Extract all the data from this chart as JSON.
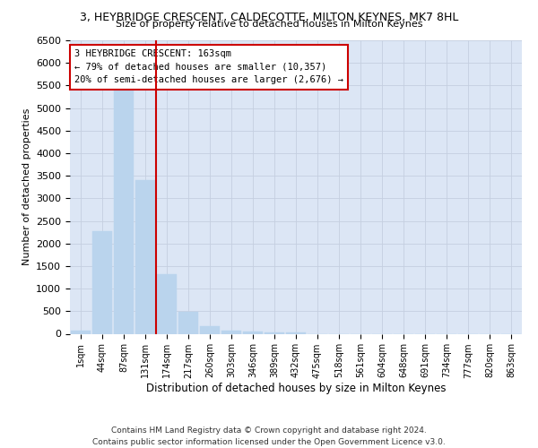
{
  "title": "3, HEYBRIDGE CRESCENT, CALDECOTTE, MILTON KEYNES, MK7 8HL",
  "subtitle": "Size of property relative to detached houses in Milton Keynes",
  "xlabel": "Distribution of detached houses by size in Milton Keynes",
  "ylabel": "Number of detached properties",
  "footer_line1": "Contains HM Land Registry data © Crown copyright and database right 2024.",
  "footer_line2": "Contains public sector information licensed under the Open Government Licence v3.0.",
  "bar_labels": [
    "1sqm",
    "44sqm",
    "87sqm",
    "131sqm",
    "174sqm",
    "217sqm",
    "260sqm",
    "303sqm",
    "346sqm",
    "389sqm",
    "432sqm",
    "475sqm",
    "518sqm",
    "561sqm",
    "604sqm",
    "648sqm",
    "691sqm",
    "734sqm",
    "777sqm",
    "820sqm",
    "863sqm"
  ],
  "bar_values": [
    75,
    2280,
    5450,
    3400,
    1320,
    480,
    160,
    75,
    55,
    30,
    20,
    0,
    0,
    0,
    0,
    0,
    0,
    0,
    0,
    0,
    0
  ],
  "bar_color": "#bad4ed",
  "bar_edge_color": "#bad4ed",
  "grid_color": "#c5cfe0",
  "background_color": "#dce6f5",
  "vline_x": 3.5,
  "vline_color": "#cc0000",
  "annotation_line1": "3 HEYBRIDGE CRESCENT: 163sqm",
  "annotation_line2": "← 79% of detached houses are smaller (10,357)",
  "annotation_line3": "20% of semi-detached houses are larger (2,676) →",
  "ylim": [
    0,
    6500
  ],
  "yticks": [
    0,
    500,
    1000,
    1500,
    2000,
    2500,
    3000,
    3500,
    4000,
    4500,
    5000,
    5500,
    6000,
    6500
  ]
}
